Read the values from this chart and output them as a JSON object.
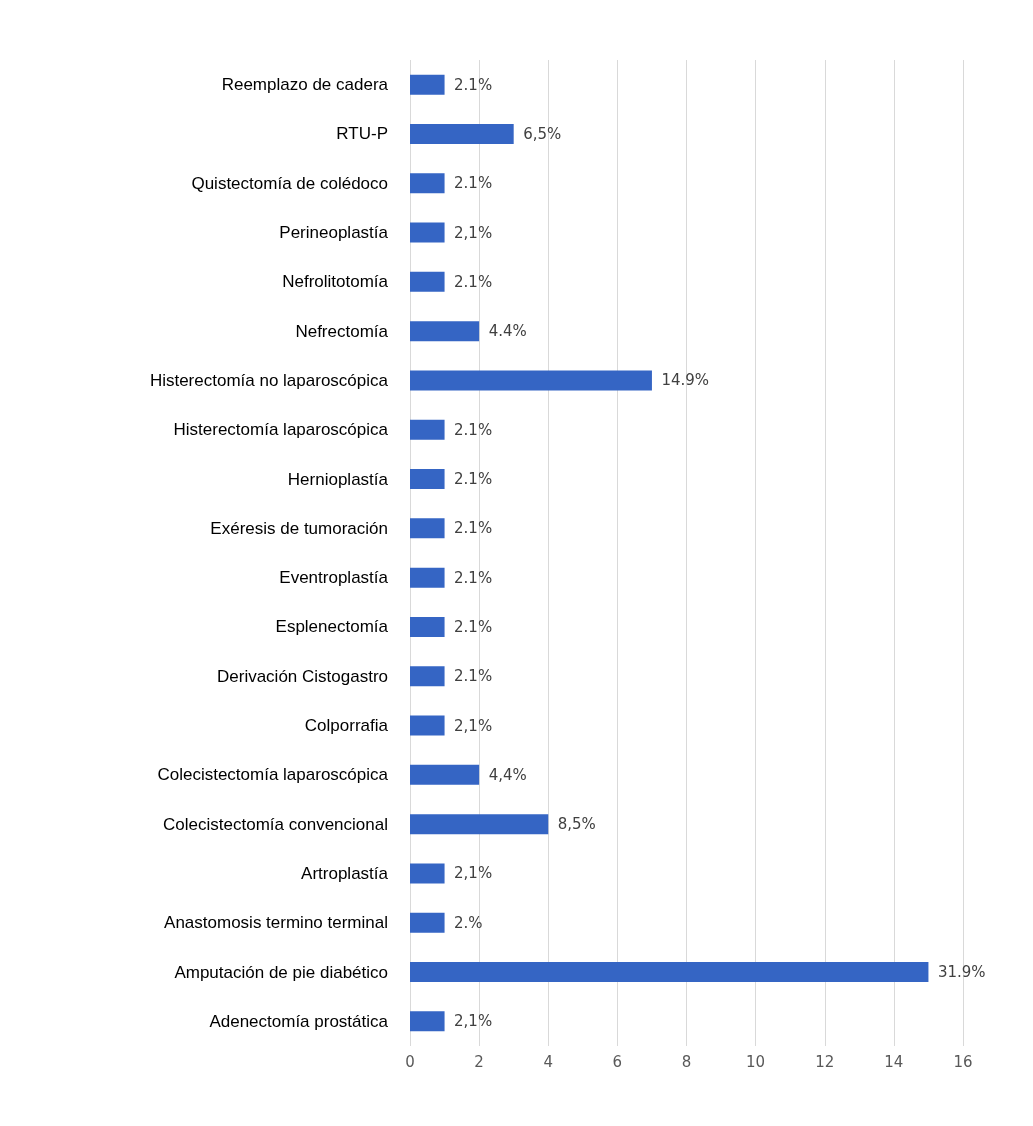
{
  "chart_data": {
    "type": "bar",
    "orientation": "horizontal",
    "categories": [
      "Reemplazo de cadera",
      "RTU-P",
      "Quistectomía de colédoco",
      "Perineoplastía",
      "Nefrolitotomía",
      "Nefrectomía",
      "Histerectomía no laparoscópica",
      "Histerectomía laparoscópica",
      "Hernioplastía",
      "Exéresis de tumoración",
      "Eventroplastía",
      "Esplenectomía",
      "Derivación Cistogastro",
      "Colporrafia",
      "Colecistectomía laparoscópica",
      "Colecistectomía convencional",
      "Artroplastía",
      "Anastomosis termino terminal",
      "Amputación de pie diabético",
      "Adenectomía prostática"
    ],
    "values": [
      1,
      3,
      1,
      1,
      1,
      2,
      7,
      1,
      1,
      1,
      1,
      1,
      1,
      1,
      2,
      4,
      1,
      1,
      15,
      1
    ],
    "annotations": [
      {
        "text": "2.1%",
        "x": 1,
        "y": "Reemplazo de cadera"
      },
      {
        "text": "6,5%",
        "x": 3,
        "y": "RTU-P"
      },
      {
        "text": "2.1%",
        "x": 1,
        "y": "Quistectomía de colédoco"
      },
      {
        "text": "2,1%",
        "x": 1,
        "y": "Perineoplastía"
      },
      {
        "text": "2.1%",
        "x": 1,
        "y": "Nefrolitotomía"
      },
      {
        "text": "4.4%",
        "x": 2,
        "y": "Nefrectomía"
      },
      {
        "text": "14.9%",
        "x": 7,
        "y": "Histerectomía no laparoscópica"
      },
      {
        "text": "2.1%",
        "x": 1,
        "y": "Histerectomía laparoscópica"
      },
      {
        "text": "2.1%",
        "x": 1,
        "y": "Hernioplastía"
      },
      {
        "text": "2.1%",
        "x": 1,
        "y": "Exéresis de tumoración"
      },
      {
        "text": "2.1%",
        "x": 1,
        "y": "Eventroplastía"
      },
      {
        "text": "2.1%",
        "x": 1,
        "y": "Esplenectomía"
      },
      {
        "text": "2.1%",
        "x": 1,
        "y": "Derivación Cistogastro"
      },
      {
        "text": "2,1%",
        "x": 1,
        "y": "Colporrafia"
      },
      {
        "text": "4,4%",
        "x": 2,
        "y": "Colecistectomía laparoscópica"
      },
      {
        "text": "8,5%",
        "x": 4,
        "y": "Colecistectomía convencional"
      },
      {
        "text": "2,1%",
        "x": 1,
        "y": "Artroplastía"
      },
      {
        "text": "2.%",
        "x": 1,
        "y": "Anastomosis termino terminal"
      },
      {
        "text": "31.9%",
        "x": 15,
        "y": "Amputación de pie diabético"
      },
      {
        "text": "2,1%",
        "x": 1,
        "y": "Adenectomía prostática"
      }
    ],
    "color": "#3565c4",
    "xlim": [
      0,
      16
    ],
    "xticks": [
      0,
      2,
      4,
      6,
      8,
      10,
      12,
      14,
      16
    ],
    "grid": "x"
  }
}
